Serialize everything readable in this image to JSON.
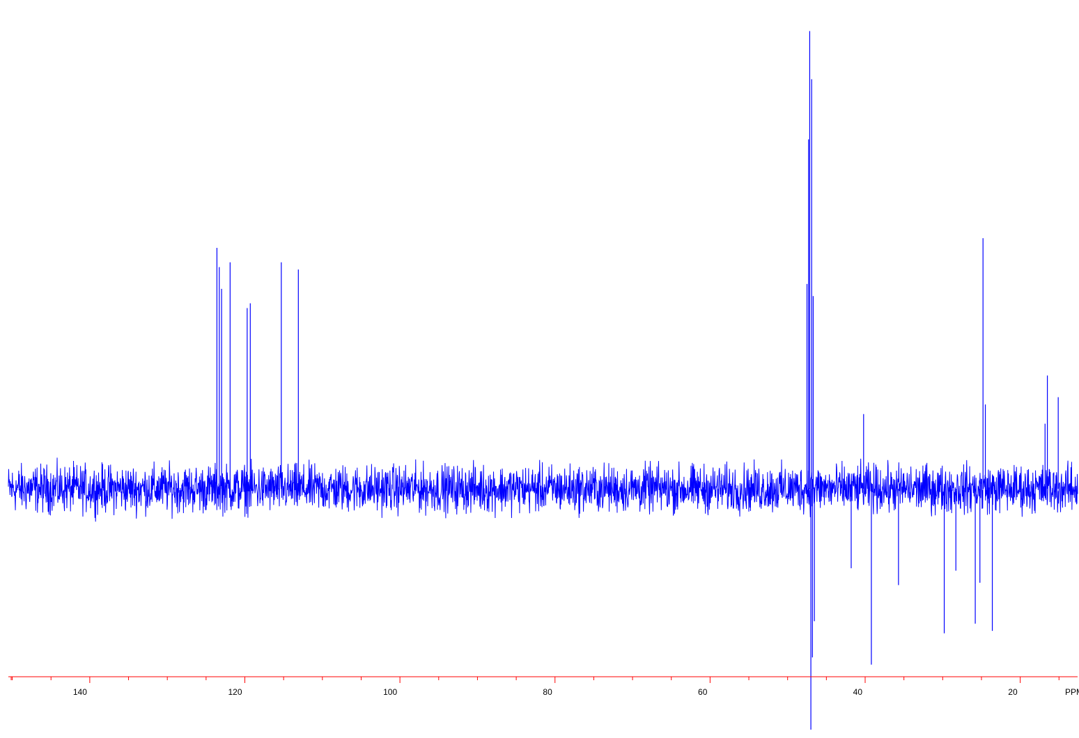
{
  "chart_data": {
    "type": "line",
    "title": "",
    "xlabel": "PPM",
    "ylabel": "",
    "x_axis": {
      "min": 150.5,
      "max": 12.6,
      "reversed": true,
      "major_ticks": [
        140,
        120,
        100,
        80,
        60,
        40,
        20
      ],
      "minor_step": 5,
      "unit_label": "PPM"
    },
    "y_axis": {
      "min": -100,
      "max": 190,
      "baseline": 0,
      "tick_labels_shown": false
    },
    "grid": false,
    "legend": "none",
    "colors": {
      "trace": "#0000ff",
      "axis": "#ff0000",
      "text": "#000000",
      "background": "#ffffff"
    },
    "series": [
      {
        "noise_amplitude": 8,
        "peaks": [
          {
            "x": 123.6,
            "y": 100
          },
          {
            "x": 123.3,
            "y": 92
          },
          {
            "x": 123.0,
            "y": 83
          },
          {
            "x": 121.9,
            "y": 94
          },
          {
            "x": 119.7,
            "y": 75
          },
          {
            "x": 119.3,
            "y": 77
          },
          {
            "x": 115.3,
            "y": 94
          },
          {
            "x": 113.1,
            "y": 91
          },
          {
            "x": 47.5,
            "y": 85
          },
          {
            "x": 47.3,
            "y": 145
          },
          {
            "x": 47.15,
            "y": 190
          },
          {
            "x": 47.0,
            "y": -100
          },
          {
            "x": 46.9,
            "y": 170
          },
          {
            "x": 46.8,
            "y": -70
          },
          {
            "x": 46.7,
            "y": 80
          },
          {
            "x": 46.55,
            "y": -55
          },
          {
            "x": 41.8,
            "y": -33
          },
          {
            "x": 40.2,
            "y": 31
          },
          {
            "x": 39.2,
            "y": -73
          },
          {
            "x": 35.7,
            "y": -40
          },
          {
            "x": 29.8,
            "y": -60
          },
          {
            "x": 28.3,
            "y": -34
          },
          {
            "x": 25.8,
            "y": -56
          },
          {
            "x": 25.2,
            "y": -39
          },
          {
            "x": 24.8,
            "y": 104
          },
          {
            "x": 24.5,
            "y": 35
          },
          {
            "x": 23.6,
            "y": -59
          },
          {
            "x": 16.8,
            "y": 27
          },
          {
            "x": 16.5,
            "y": 47
          },
          {
            "x": 15.1,
            "y": 38
          }
        ]
      }
    ]
  }
}
